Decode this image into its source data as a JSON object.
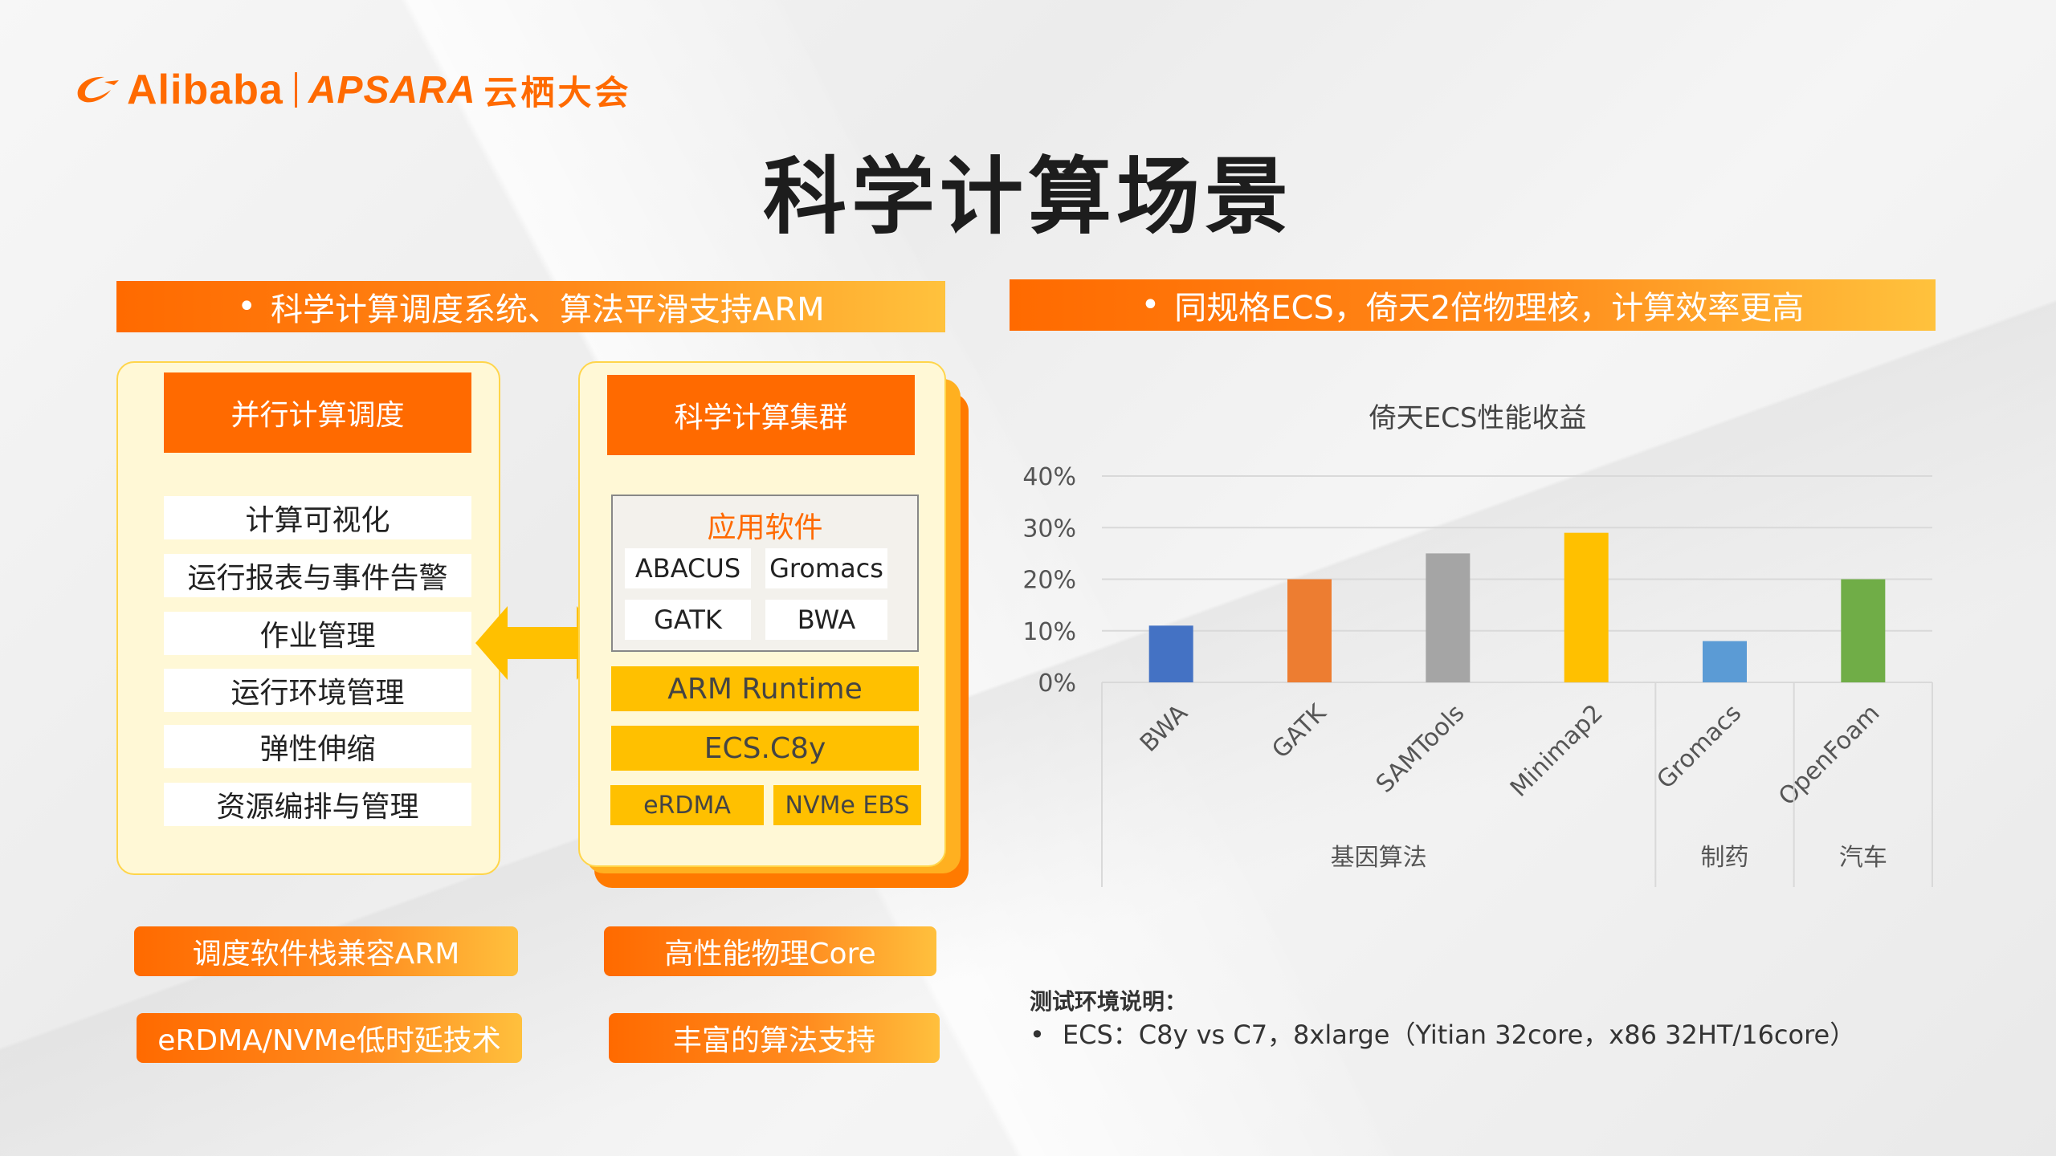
{
  "logo": {
    "brand": "Alibaba",
    "event_brand": "APSARA",
    "event_cn": "云栖大会"
  },
  "title": "科学计算场景",
  "left_banner": "科学计算调度系统、算法平滑支持ARM",
  "right_banner": "同规格ECS，倚天2倍物理核，计算效率更高",
  "bullet": "•",
  "scheduler": {
    "header": "并行计算调度",
    "items": [
      "计算可视化",
      "运行报表与事件告警",
      "作业管理",
      "运行环境管理",
      "弹性伸缩",
      "资源编排与管理"
    ]
  },
  "cluster": {
    "header": "科学计算集群",
    "apps_title": "应用软件",
    "apps": [
      "ABACUS",
      "Gromacs",
      "GATK",
      "BWA"
    ],
    "runtime": "ARM Runtime",
    "instance": "ECS.C8y",
    "network": "eRDMA",
    "storage": "NVMe EBS"
  },
  "pills": {
    "left_1": "调度软件栈兼容ARM",
    "left_2": "eRDMA/NVMe低时延技术",
    "right_1": "高性能物理Core",
    "right_2": "丰富的算法支持"
  },
  "notes": {
    "title": "测试环境说明：",
    "item": "ECS：C8y vs C7，8xlarge（Yitian 32core，x86 32HT/16core）"
  },
  "colors": {
    "accent": "#ff6a00",
    "accent_yellow": "#ffc000"
  },
  "icons": {
    "arrow": "double-arrow-icon",
    "logo": "alibaba-logo-icon"
  },
  "chart_data": {
    "type": "bar",
    "title": "倚天ECS性能收益",
    "categories": [
      "BWA",
      "GATK",
      "SAMTools",
      "Minimap2",
      "Gromacs",
      "OpenFoam"
    ],
    "values": [
      11,
      20,
      25,
      29,
      8,
      20
    ],
    "unit": "%",
    "colors": [
      "#4472c4",
      "#ed7d31",
      "#a5a5a5",
      "#ffc000",
      "#5b9bd5",
      "#70ad47"
    ],
    "groups": [
      {
        "label": "基因算法",
        "count": 4
      },
      {
        "label": "制药",
        "count": 1
      },
      {
        "label": "汽车",
        "count": 1
      }
    ],
    "yticks": [
      "0%",
      "10%",
      "20%",
      "30%",
      "40%"
    ],
    "ylim": [
      0,
      40
    ],
    "grid": true,
    "legend": "none"
  }
}
